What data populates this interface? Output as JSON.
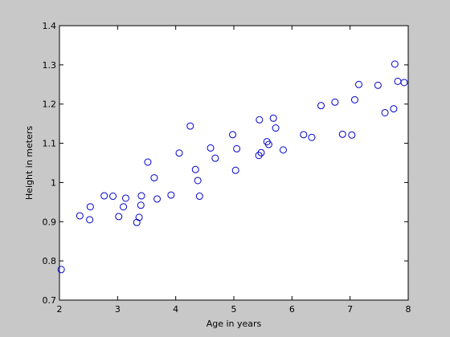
{
  "chart_data": {
    "type": "scatter",
    "title": "",
    "xlabel": "Age in years",
    "ylabel": "Height in meters",
    "xlim": [
      2,
      8
    ],
    "ylim": [
      0.7,
      1.4
    ],
    "xticks": [
      "2",
      "3",
      "4",
      "5",
      "6",
      "7",
      "8"
    ],
    "yticks": [
      "0.7",
      "0.8",
      "0.9",
      "1",
      "1.1",
      "1.2",
      "1.3",
      "1.4"
    ],
    "grid": false,
    "marker": "circle-open",
    "marker_color": "#0000cc",
    "series": [
      {
        "x": [
          2.03,
          2.35,
          2.52,
          2.53,
          2.77,
          2.92,
          3.02,
          3.1,
          3.14,
          3.33,
          3.37,
          3.4,
          3.41,
          3.52,
          3.63,
          3.68,
          3.92,
          4.06,
          4.25,
          4.34,
          4.38,
          4.41,
          4.6,
          4.68,
          4.98,
          5.03,
          5.05,
          5.43,
          5.44,
          5.47,
          5.57,
          5.6,
          5.68,
          5.72,
          5.85,
          6.2,
          6.34,
          6.5,
          6.74,
          6.87,
          7.03,
          7.08,
          7.15,
          7.48,
          7.6,
          7.75,
          7.77,
          7.82,
          7.93
        ],
        "y": [
          0.778,
          0.915,
          0.905,
          0.938,
          0.966,
          0.965,
          0.913,
          0.938,
          0.96,
          0.898,
          0.911,
          0.942,
          0.966,
          1.052,
          1.012,
          0.958,
          0.968,
          1.075,
          1.144,
          1.033,
          1.005,
          0.965,
          1.088,
          1.062,
          1.122,
          1.031,
          1.086,
          1.069,
          1.16,
          1.076,
          1.104,
          1.097,
          1.164,
          1.139,
          1.083,
          1.122,
          1.115,
          1.196,
          1.205,
          1.123,
          1.121,
          1.211,
          1.25,
          1.248,
          1.178,
          1.188,
          1.302,
          1.258,
          1.255
        ]
      }
    ]
  }
}
